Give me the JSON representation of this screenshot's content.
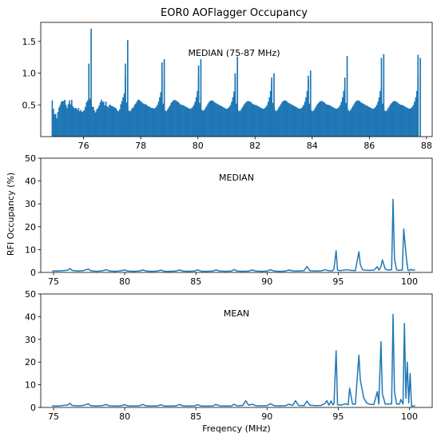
{
  "figure": {
    "title": "EOR0 AOFlagger Occupancy",
    "shared_ylabel": "RFI Occupancy (%)",
    "shared_xlabel": "Freqency (MHz)",
    "series_color": "#1f77b4"
  },
  "chart_data": [
    {
      "type": "bar",
      "annotation": "MEDIAN (75-87 MHz)",
      "xlim": [
        74.5,
        88.2
      ],
      "ylim": [
        0,
        1.8
      ],
      "xticks": [
        76,
        78,
        80,
        82,
        84,
        86,
        88
      ],
      "yticks": [
        0.5,
        1.0,
        1.5
      ],
      "ytick_labels": [
        "0.5",
        "1.0",
        "1.5"
      ],
      "coarse_band_starts": [
        74.88,
        76.16,
        77.44,
        78.72,
        80.0,
        81.28,
        82.56,
        83.84,
        85.12,
        86.4,
        87.68
      ],
      "coarse_band_width_mhz": 1.28,
      "channel_width_mhz": 0.04,
      "coarse_bands": [
        {
          "edge": [
            0.57,
            0.41
          ],
          "center": 1.7,
          "floor": 0.1,
          "profile": [
            0.44,
            0.35,
            0.36,
            0.29,
            0.39,
            0.46,
            0.5,
            0.55,
            0.56,
            0.56,
            0.58,
            0.5,
            0.45,
            0.51,
            0.57,
            0.51,
            0.58,
            0.48,
            0.45,
            0.45,
            0.45,
            0.42,
            0.45,
            0.4,
            0.42,
            0.39,
            0.4,
            0.42,
            0.47,
            0.54,
            0.57
          ]
        },
        {
          "edge": [
            1.15,
            0.93
          ],
          "center": 1.52,
          "floor": 0.0,
          "profile": [
            0.6,
            0.53,
            0.47,
            0.47,
            0.41,
            0.38,
            0.43,
            0.45,
            0.49,
            0.54,
            0.58,
            0.55,
            0.55,
            0.49,
            0.55,
            0.48,
            0.46,
            0.5,
            0.5,
            0.48,
            0.48,
            0.46,
            0.46,
            0.44,
            0.41,
            0.4,
            0.43,
            0.51,
            0.56,
            0.62,
            0.68
          ]
        },
        {
          "edge": [
            1.15,
            0.99
          ],
          "center": 1.22,
          "floor": 0.0,
          "profile": [
            0.54,
            0.48,
            0.41,
            0.4,
            0.42,
            0.45,
            0.46,
            0.5,
            0.52,
            0.55,
            0.58,
            0.58,
            0.56,
            0.55,
            0.53,
            0.52,
            0.51,
            0.51,
            0.49,
            0.48,
            0.47,
            0.46,
            0.45,
            0.45,
            0.44,
            0.45,
            0.47,
            0.5,
            0.55,
            0.62,
            0.7
          ]
        },
        {
          "edge": [
            1.17,
            0.96
          ],
          "center": 1.22,
          "floor": 0.0,
          "profile": [
            0.52,
            0.46,
            0.41,
            0.4,
            0.43,
            0.46,
            0.49,
            0.53,
            0.55,
            0.57,
            0.58,
            0.57,
            0.56,
            0.55,
            0.53,
            0.51,
            0.5,
            0.5,
            0.49,
            0.48,
            0.47,
            0.46,
            0.45,
            0.44,
            0.44,
            0.45,
            0.47,
            0.5,
            0.55,
            0.62,
            0.72
          ]
        },
        {
          "edge": [
            1.12,
            0.95
          ],
          "center": 1.26,
          "floor": 0.0,
          "profile": [
            0.53,
            0.47,
            0.42,
            0.41,
            0.42,
            0.45,
            0.48,
            0.51,
            0.54,
            0.56,
            0.57,
            0.57,
            0.56,
            0.54,
            0.53,
            0.52,
            0.51,
            0.5,
            0.49,
            0.48,
            0.47,
            0.46,
            0.45,
            0.44,
            0.44,
            0.45,
            0.47,
            0.5,
            0.55,
            0.62,
            0.71
          ]
        },
        {
          "edge": [
            1.0,
            0.86
          ],
          "center": 1.0,
          "floor": 0.0,
          "profile": [
            0.52,
            0.46,
            0.41,
            0.4,
            0.42,
            0.45,
            0.48,
            0.51,
            0.53,
            0.55,
            0.56,
            0.56,
            0.55,
            0.54,
            0.52,
            0.51,
            0.5,
            0.5,
            0.49,
            0.48,
            0.47,
            0.46,
            0.45,
            0.44,
            0.44,
            0.45,
            0.47,
            0.5,
            0.55,
            0.62,
            0.72
          ]
        },
        {
          "edge": [
            0.93,
            0.89
          ],
          "center": 1.04,
          "floor": 0.0,
          "profile": [
            0.53,
            0.47,
            0.42,
            0.4,
            0.42,
            0.45,
            0.48,
            0.51,
            0.54,
            0.56,
            0.57,
            0.57,
            0.56,
            0.54,
            0.53,
            0.52,
            0.51,
            0.5,
            0.49,
            0.48,
            0.47,
            0.46,
            0.45,
            0.44,
            0.44,
            0.45,
            0.47,
            0.5,
            0.55,
            0.62,
            0.72
          ]
        },
        {
          "edge": [
            0.96,
            0.77
          ],
          "center": 1.27,
          "floor": 0.0,
          "profile": [
            0.52,
            0.46,
            0.41,
            0.4,
            0.42,
            0.45,
            0.48,
            0.51,
            0.53,
            0.55,
            0.56,
            0.56,
            0.55,
            0.54,
            0.52,
            0.51,
            0.5,
            0.5,
            0.49,
            0.48,
            0.47,
            0.46,
            0.45,
            0.44,
            0.44,
            0.45,
            0.47,
            0.5,
            0.55,
            0.62,
            0.72
          ]
        },
        {
          "edge": [
            0.93,
            0.78
          ],
          "center": 1.3,
          "floor": 0.0,
          "profile": [
            0.53,
            0.47,
            0.42,
            0.4,
            0.42,
            0.45,
            0.48,
            0.51,
            0.54,
            0.56,
            0.57,
            0.57,
            0.56,
            0.54,
            0.53,
            0.52,
            0.51,
            0.5,
            0.49,
            0.48,
            0.47,
            0.46,
            0.45,
            0.44,
            0.44,
            0.45,
            0.47,
            0.5,
            0.55,
            0.62,
            0.72
          ]
        },
        {
          "edge": [
            1.24,
            0.97
          ],
          "center": 1.24,
          "floor": 0.0,
          "profile": [
            0.52,
            0.46,
            0.41,
            0.4,
            0.42,
            0.45,
            0.48,
            0.51,
            0.53,
            0.55,
            0.56,
            0.56,
            0.55,
            0.54,
            0.52,
            0.51,
            0.5,
            0.5,
            0.49,
            0.48,
            0.47,
            0.46,
            0.45,
            0.44,
            0.44,
            0.45,
            0.47,
            0.5,
            0.55,
            0.62,
            0.72
          ]
        },
        {
          "edge": [
            1.29,
            1.0
          ],
          "center": 1.3,
          "floor": 0.0,
          "profile": []
        }
      ]
    },
    {
      "type": "line",
      "annotation": "MEDIAN",
      "xlim": [
        74.1,
        101.6
      ],
      "ylim": [
        0,
        50
      ],
      "xticks": [
        75,
        80,
        85,
        90,
        95,
        100
      ],
      "yticks": [
        0,
        10,
        20,
        30,
        40,
        50
      ],
      "x": [
        74.9,
        75.3,
        75.7,
        76.0,
        76.16,
        76.3,
        76.7,
        77.1,
        77.44,
        77.6,
        78.0,
        78.4,
        78.72,
        78.9,
        79.3,
        79.7,
        80.0,
        80.2,
        80.6,
        81.0,
        81.28,
        81.5,
        81.9,
        82.3,
        82.56,
        82.8,
        83.2,
        83.6,
        83.84,
        84.1,
        84.5,
        84.9,
        85.12,
        85.4,
        85.8,
        86.2,
        86.4,
        86.7,
        87.1,
        87.5,
        87.68,
        87.9,
        88.3,
        88.7,
        88.96,
        89.2,
        89.6,
        90.0,
        90.24,
        90.5,
        90.9,
        91.3,
        91.52,
        91.8,
        92.2,
        92.6,
        92.8,
        93.0,
        93.4,
        93.8,
        94.08,
        94.3,
        94.6,
        94.7,
        94.85,
        94.95,
        95.1,
        95.3,
        95.6,
        95.9,
        96.2,
        96.45,
        96.55,
        96.7,
        96.9,
        97.2,
        97.5,
        97.75,
        97.85,
        98.0,
        98.1,
        98.3,
        98.5,
        98.75,
        98.85,
        98.95,
        99.1,
        99.3,
        99.5,
        99.6,
        99.8,
        99.9,
        100.0,
        100.1,
        100.2,
        100.4
      ],
      "y": [
        0.7,
        0.6,
        0.8,
        1.0,
        1.7,
        0.9,
        0.6,
        0.8,
        1.5,
        0.8,
        0.5,
        0.7,
        1.2,
        0.7,
        0.5,
        0.7,
        1.1,
        0.6,
        0.5,
        0.6,
        1.1,
        0.6,
        0.5,
        0.6,
        1.0,
        0.5,
        0.5,
        0.6,
        1.1,
        0.6,
        0.5,
        0.6,
        1.1,
        0.5,
        0.5,
        0.6,
        1.1,
        0.6,
        0.5,
        0.6,
        1.3,
        0.6,
        0.5,
        0.6,
        1.1,
        0.6,
        0.5,
        0.6,
        1.2,
        0.6,
        0.5,
        0.6,
        1.1,
        0.7,
        0.6,
        0.8,
        2.6,
        0.8,
        0.6,
        0.7,
        1.2,
        0.8,
        0.7,
        1.5,
        9.5,
        1.0,
        0.8,
        0.9,
        1.2,
        0.9,
        0.8,
        9.0,
        3.5,
        1.2,
        1.0,
        0.9,
        1.0,
        2.5,
        1.0,
        2.5,
        5.5,
        1.5,
        1.0,
        1.2,
        32.0,
        6.0,
        1.1,
        0.9,
        1.0,
        19.0,
        5.5,
        1.0,
        0.8,
        1.4,
        1.0,
        1.1
      ]
    },
    {
      "type": "line",
      "annotation": "MEAN",
      "xlim": [
        74.1,
        101.6
      ],
      "ylim": [
        0,
        50
      ],
      "xticks": [
        75,
        80,
        85,
        90,
        95,
        100
      ],
      "yticks": [
        0,
        10,
        20,
        30,
        40,
        50
      ],
      "x": [
        74.9,
        75.3,
        75.7,
        76.0,
        76.16,
        76.3,
        76.7,
        77.1,
        77.44,
        77.6,
        78.0,
        78.4,
        78.72,
        78.9,
        79.3,
        79.7,
        80.0,
        80.2,
        80.6,
        81.0,
        81.28,
        81.5,
        81.9,
        82.3,
        82.56,
        82.8,
        83.2,
        83.6,
        83.84,
        84.1,
        84.5,
        84.9,
        85.12,
        85.4,
        85.8,
        86.2,
        86.4,
        86.7,
        87.1,
        87.5,
        87.68,
        87.9,
        88.3,
        88.5,
        88.7,
        88.96,
        89.2,
        89.6,
        90.0,
        90.24,
        90.5,
        90.9,
        91.3,
        91.52,
        91.8,
        92.0,
        92.2,
        92.6,
        92.8,
        93.0,
        93.4,
        93.8,
        94.08,
        94.2,
        94.35,
        94.5,
        94.6,
        94.7,
        94.85,
        94.95,
        95.1,
        95.3,
        95.5,
        95.7,
        95.8,
        96.0,
        96.2,
        96.45,
        96.55,
        96.8,
        97.0,
        97.2,
        97.5,
        97.75,
        97.85,
        98.0,
        98.1,
        98.3,
        98.5,
        98.75,
        98.85,
        98.95,
        99.1,
        99.3,
        99.4,
        99.55,
        99.65,
        99.75,
        99.85,
        99.95,
        100.05,
        100.15,
        100.25,
        100.4
      ],
      "y": [
        0.7,
        0.6,
        0.9,
        1.1,
        1.8,
        0.9,
        0.7,
        0.9,
        1.6,
        0.8,
        0.6,
        0.8,
        1.3,
        0.7,
        0.6,
        0.7,
        1.2,
        0.7,
        0.6,
        0.7,
        1.3,
        0.7,
        0.6,
        0.7,
        1.2,
        0.6,
        0.6,
        0.7,
        1.3,
        0.7,
        0.6,
        0.7,
        1.2,
        0.6,
        0.6,
        0.7,
        1.3,
        0.7,
        0.6,
        0.7,
        1.4,
        0.7,
        0.9,
        3.0,
        1.0,
        1.4,
        0.8,
        0.7,
        0.8,
        1.6,
        0.8,
        0.7,
        0.8,
        1.4,
        0.9,
        3.0,
        0.9,
        0.8,
        2.8,
        1.0,
        0.8,
        0.9,
        1.8,
        3.0,
        1.0,
        2.9,
        1.2,
        1.5,
        25.0,
        1.2,
        1.0,
        1.2,
        1.6,
        1.2,
        8.5,
        1.5,
        1.4,
        23.0,
        12.0,
        4.0,
        2.0,
        1.4,
        1.3,
        7.0,
        1.5,
        29.0,
        6.0,
        1.5,
        1.5,
        1.6,
        41.0,
        7.0,
        1.5,
        1.5,
        3.5,
        1.5,
        37.0,
        4.0,
        20.0,
        2.0,
        15.0,
        0.5,
        0.6,
        0.7
      ]
    }
  ]
}
